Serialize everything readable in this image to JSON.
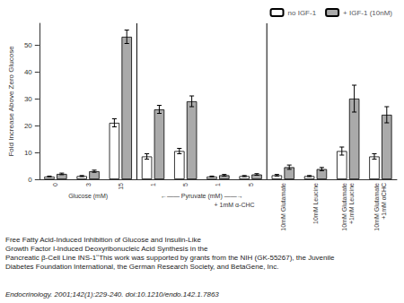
{
  "chart_data": {
    "type": "bar",
    "categories": [
      "0",
      "3",
      "15",
      "1",
      "5",
      "1",
      "5",
      "10mM Glutamate",
      "10mM Leucine",
      "10mM Glutamate\n+1mM Leucine",
      "10mM Glutamate\n+1mM αCHC"
    ],
    "series": [
      {
        "name": "no IGF-1",
        "color": "white",
        "values": [
          1.0,
          1.2,
          21.0,
          8.5,
          10.5,
          1.0,
          1.2,
          1.5,
          1.2,
          10.5,
          8.5
        ],
        "errors": [
          0.2,
          0.2,
          1.5,
          1.0,
          1.0,
          0.2,
          0.2,
          0.3,
          0.2,
          1.5,
          1.0
        ]
      },
      {
        "name": "+ IGF-1 (10nM)",
        "color": "#aaaaaa",
        "values": [
          2.0,
          3.0,
          53.0,
          26.0,
          29.0,
          1.5,
          1.8,
          4.5,
          3.8,
          30.0,
          24.0
        ],
        "errors": [
          0.3,
          0.4,
          2.5,
          1.5,
          2.0,
          0.3,
          0.3,
          0.8,
          0.6,
          5.0,
          3.0
        ]
      }
    ],
    "ylabel": "Fold Increase Above Zero Glucose",
    "ylim": [
      0,
      58
    ],
    "yticks": [
      0,
      10,
      20,
      30,
      40,
      50
    ],
    "grid": false,
    "legend": "upper right",
    "annotations": [
      "Glucose (mM)",
      "←—— Pyruvate (mM) ——→",
      "+ 1mM α-CHC"
    ],
    "caption": [
      "Free Fatty Acid-Induced Inhibition of Glucose and Insulin-Like",
      "Growth Factor I-Induced Deoxyribonucleic Acid Synthesis in the",
      "Pancreatic β-Cell Line INS-1ʹʹThis work was supported by grants from the NIH (GK-55267), the Juvenile",
      "Diabetes Foundation International, the German Research Society, and BetaGene, Inc."
    ],
    "footnote": "Endocrinology. 2001;142(1):229-240. doi:10.1210/endo.142.1.7863"
  }
}
